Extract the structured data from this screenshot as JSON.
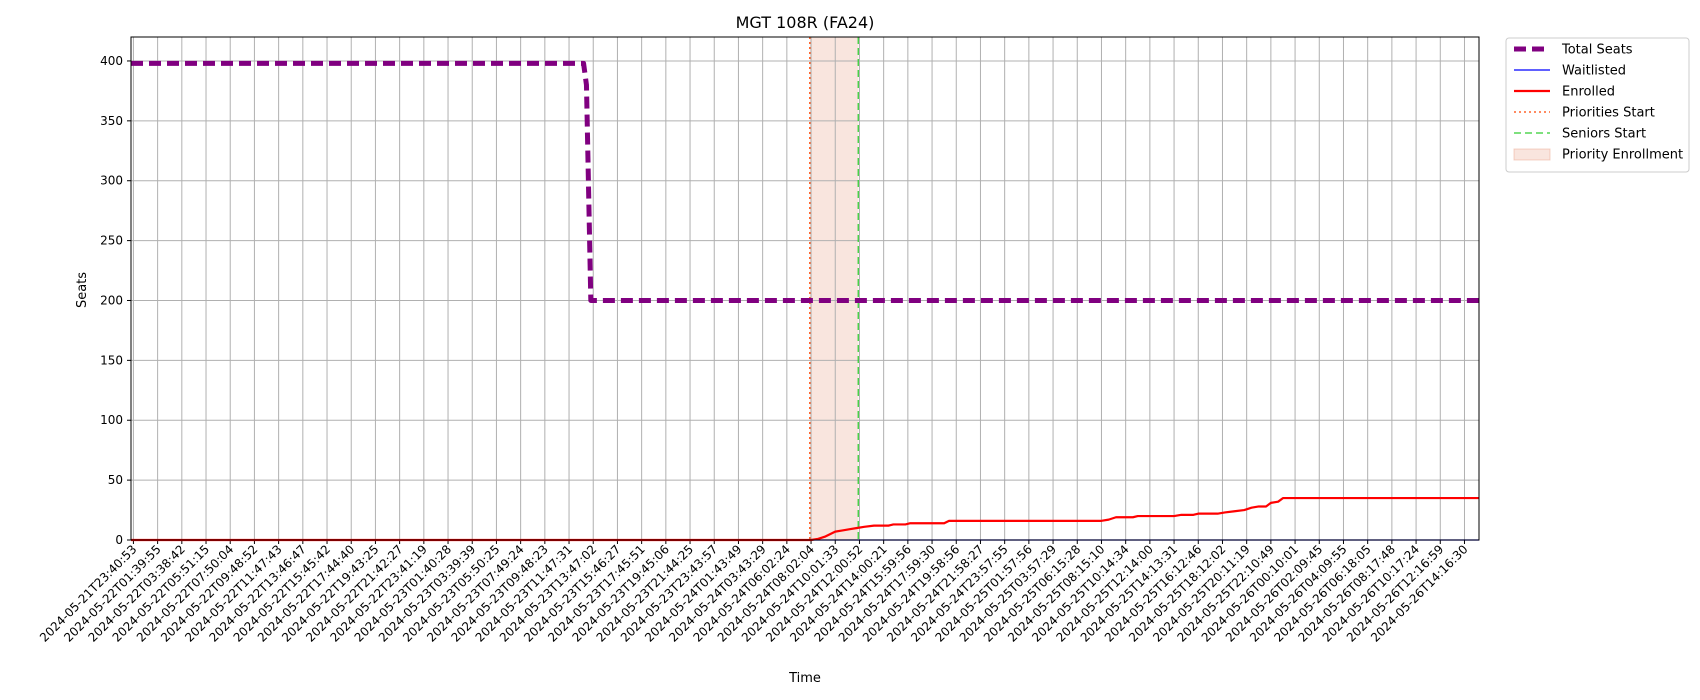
{
  "chart_data": {
    "type": "line",
    "title": "MGT 108R (FA24)",
    "xlabel": "Time",
    "ylabel": "Seats",
    "ylim": [
      0,
      420
    ],
    "yticks": [
      0,
      50,
      100,
      150,
      200,
      250,
      300,
      350,
      400
    ],
    "grid": true,
    "legend_position": "outside-top-right",
    "x_ticks": [
      "2024-05-21T23:40:53",
      "2024-05-22T01:39:55",
      "2024-05-22T03:38:42",
      "2024-05-22T05:51:15",
      "2024-05-22T07:50:04",
      "2024-05-22T09:48:52",
      "2024-05-22T11:47:43",
      "2024-05-22T13:46:47",
      "2024-05-22T15:45:42",
      "2024-05-22T17:44:40",
      "2024-05-22T19:43:25",
      "2024-05-22T21:42:27",
      "2024-05-22T23:41:19",
      "2024-05-23T01:40:28",
      "2024-05-23T03:39:39",
      "2024-05-23T05:50:25",
      "2024-05-23T07:49:24",
      "2024-05-23T09:48:23",
      "2024-05-23T11:47:31",
      "2024-05-23T13:47:02",
      "2024-05-23T15:46:27",
      "2024-05-23T17:45:51",
      "2024-05-23T19:45:06",
      "2024-05-23T21:44:25",
      "2024-05-23T23:43:57",
      "2024-05-24T01:43:49",
      "2024-05-24T03:43:29",
      "2024-05-24T06:02:24",
      "2024-05-24T08:02:04",
      "2024-05-24T10:01:33",
      "2024-05-24T12:00:52",
      "2024-05-24T14:00:21",
      "2024-05-24T15:59:56",
      "2024-05-24T17:59:30",
      "2024-05-24T19:58:56",
      "2024-05-24T21:58:27",
      "2024-05-24T23:57:55",
      "2024-05-25T01:57:56",
      "2024-05-25T03:57:29",
      "2024-05-25T06:15:28",
      "2024-05-25T08:15:10",
      "2024-05-25T10:14:34",
      "2024-05-25T12:14:00",
      "2024-05-25T14:13:31",
      "2024-05-25T16:12:46",
      "2024-05-25T18:12:02",
      "2024-05-25T20:11:19",
      "2024-05-25T22:10:49",
      "2024-05-26T00:10:01",
      "2024-05-26T02:09:45",
      "2024-05-26T04:09:55",
      "2024-05-26T06:18:05",
      "2024-05-26T08:17:48",
      "2024-05-26T10:17:24",
      "2024-05-26T12:16:59",
      "2024-05-26T14:16:30"
    ],
    "x_range_ticks": [
      -0.1,
      55.6
    ],
    "series": [
      {
        "name": "Total Seats",
        "color": "#800080",
        "style": "dashed-thick",
        "points": [
          [
            -0.1,
            398
          ],
          [
            18.6,
            398
          ],
          [
            18.72,
            380
          ],
          [
            18.9,
            200
          ],
          [
            55.6,
            200
          ]
        ]
      },
      {
        "name": "Waitlisted",
        "color": "#0000ff",
        "style": "solid-thin",
        "points": [
          [
            -0.1,
            0
          ],
          [
            55.6,
            0
          ]
        ]
      },
      {
        "name": "Enrolled",
        "color": "#ff0000",
        "style": "solid",
        "points": [
          [
            -0.1,
            0
          ],
          [
            28.0,
            0
          ],
          [
            28.3,
            1
          ],
          [
            28.6,
            3
          ],
          [
            28.8,
            5
          ],
          [
            29.0,
            7
          ],
          [
            29.3,
            8
          ],
          [
            29.6,
            9
          ],
          [
            29.9,
            10
          ],
          [
            30.2,
            11
          ],
          [
            30.6,
            12
          ],
          [
            31.2,
            12
          ],
          [
            31.4,
            13
          ],
          [
            31.9,
            13
          ],
          [
            32.1,
            14
          ],
          [
            33.5,
            14
          ],
          [
            33.7,
            16
          ],
          [
            40.0,
            16
          ],
          [
            40.3,
            17
          ],
          [
            40.6,
            19
          ],
          [
            41.3,
            19
          ],
          [
            41.5,
            20
          ],
          [
            43.0,
            20
          ],
          [
            43.3,
            21
          ],
          [
            43.8,
            21
          ],
          [
            44.0,
            22
          ],
          [
            44.8,
            22
          ],
          [
            45.1,
            23
          ],
          [
            45.5,
            24
          ],
          [
            45.9,
            25
          ],
          [
            46.2,
            27
          ],
          [
            46.5,
            28
          ],
          [
            46.8,
            28
          ],
          [
            47.0,
            31
          ],
          [
            47.3,
            32
          ],
          [
            47.5,
            35
          ],
          [
            55.6,
            35
          ]
        ]
      }
    ],
    "markers": [
      {
        "name": "Priorities Start",
        "x": 27.95,
        "color": "#ff4500",
        "style": "dotted"
      },
      {
        "name": "Seniors Start",
        "x": 29.95,
        "color": "#32cd32",
        "style": "dashed"
      }
    ],
    "shaded_region": {
      "name": "Priority Enrollment",
      "x_start": 27.95,
      "x_end": 29.95,
      "color": "#e9967a"
    }
  }
}
